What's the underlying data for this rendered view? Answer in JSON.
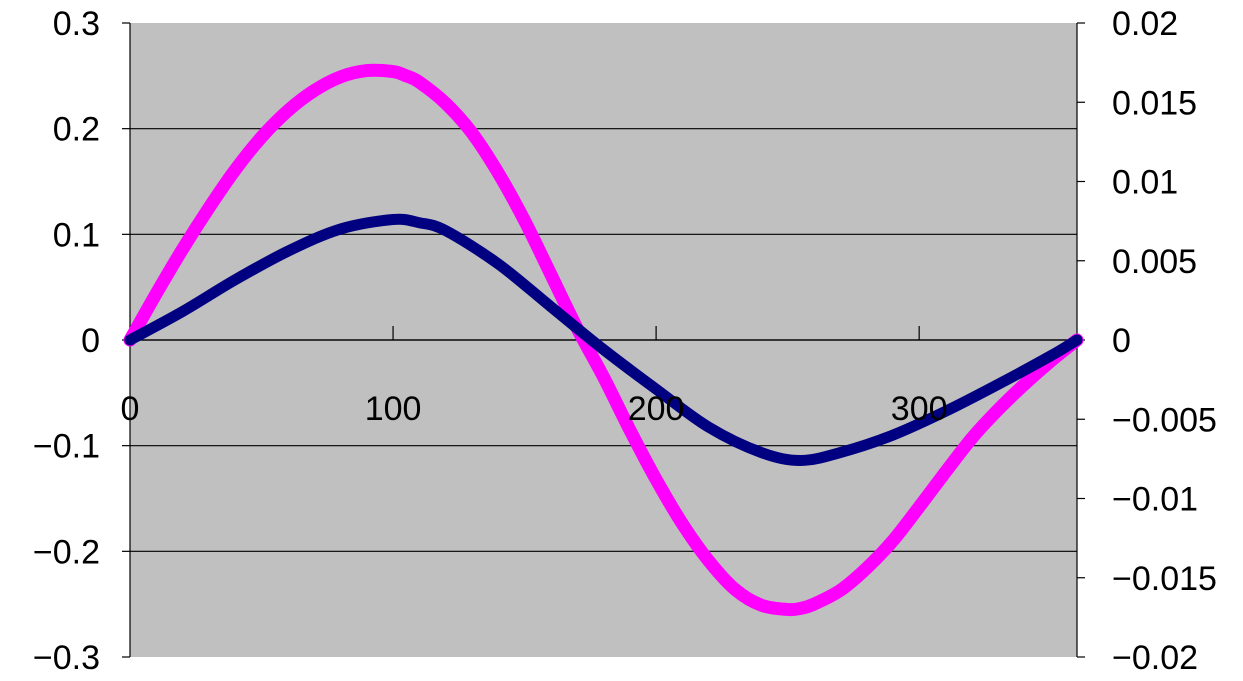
{
  "chart_data": {
    "type": "line",
    "colors": {
      "plot_background": "#c0c0c0",
      "series_1": "#ff00ff",
      "series_2": "#000080",
      "gridline": "#000000"
    },
    "grid": {
      "horizontal": true,
      "vertical": false
    },
    "legend": "none",
    "xlim": [
      0,
      360
    ],
    "ylim_left": [
      -0.3,
      0.3
    ],
    "ylim_right": [
      -0.02,
      0.02
    ],
    "x_ticks": [
      "0",
      "100",
      "200",
      "300"
    ],
    "y_left_ticks": [
      "0.3",
      "0.2",
      "0.1",
      "0",
      "−0.1",
      "−0.2",
      "−0.3"
    ],
    "y_right_ticks": [
      "0.02",
      "0.015",
      "0.01",
      "0.005",
      "0",
      "−0.005",
      "−0.01",
      "−0.015",
      "−0.02"
    ],
    "series": [
      {
        "axis": "left",
        "color": "#ff00ff",
        "x": [
          0,
          10,
          20,
          30,
          40,
          50,
          60,
          70,
          80,
          90,
          100,
          105,
          110,
          120,
          130,
          140,
          150,
          160,
          170,
          180,
          190,
          200,
          210,
          220,
          230,
          240,
          250,
          255,
          260,
          270,
          280,
          290,
          300,
          310,
          320,
          330,
          340,
          350,
          360
        ],
        "y": [
          0,
          0.044,
          0.086,
          0.125,
          0.161,
          0.192,
          0.217,
          0.236,
          0.249,
          0.255,
          0.254,
          0.25,
          0.244,
          0.224,
          0.196,
          0.158,
          0.113,
          0.062,
          0.011,
          -0.035,
          -0.085,
          -0.132,
          -0.174,
          -0.209,
          -0.236,
          -0.251,
          -0.255,
          -0.254,
          -0.25,
          -0.237,
          -0.216,
          -0.19,
          -0.158,
          -0.125,
          -0.093,
          -0.066,
          -0.042,
          -0.02,
          0
        ]
      },
      {
        "axis": "right",
        "color": "#000080",
        "x": [
          0,
          20,
          40,
          60,
          80,
          100,
          110,
          120,
          140,
          160,
          180,
          200,
          220,
          240,
          255,
          270,
          290,
          310,
          330,
          350,
          360
        ],
        "y": [
          0,
          0.0018,
          0.0038,
          0.0056,
          0.007,
          0.0076,
          0.0074,
          0.0069,
          0.0048,
          0.0021,
          -0.0006,
          -0.0031,
          -0.0055,
          -0.0071,
          -0.0076,
          -0.0071,
          -0.006,
          -0.0045,
          -0.0028,
          -0.001,
          0
        ]
      }
    ]
  }
}
